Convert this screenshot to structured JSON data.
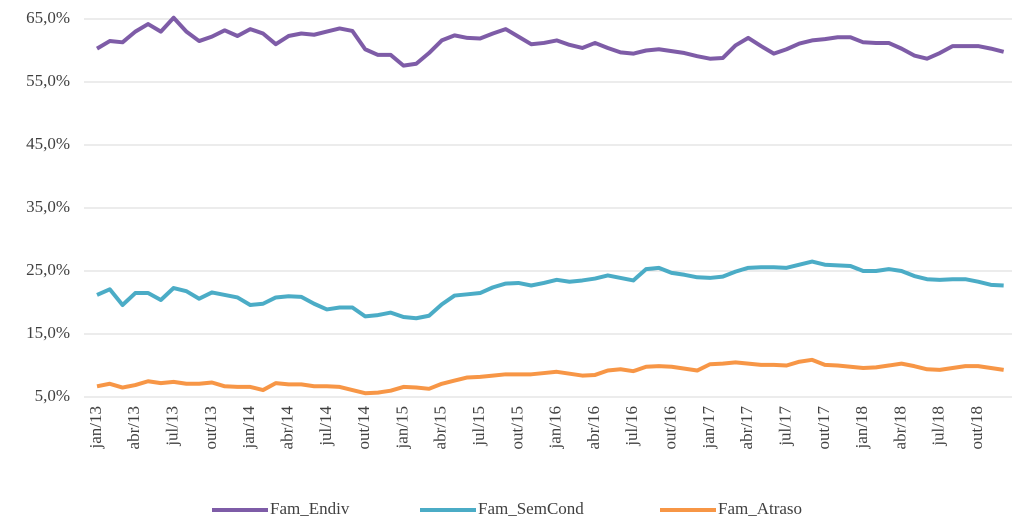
{
  "chart_data": {
    "type": "line",
    "categories": [
      "jan/13",
      null,
      null,
      "abr/13",
      null,
      null,
      "jul/13",
      null,
      null,
      "out/13",
      null,
      null,
      "jan/14",
      null,
      null,
      "abr/14",
      null,
      null,
      "jul/14",
      null,
      null,
      "out/14",
      null,
      null,
      "jan/15",
      null,
      null,
      "abr/15",
      null,
      null,
      "jul/15",
      null,
      null,
      "out/15",
      null,
      null,
      "jan/16",
      null,
      null,
      "abr/16",
      null,
      null,
      "jul/16",
      null,
      null,
      "out/16",
      null,
      null,
      "jan/17",
      null,
      null,
      "abr/17",
      null,
      null,
      "jul/17",
      null,
      null,
      "out/17",
      null,
      null,
      "jan/18",
      null,
      null,
      "abr/18",
      null,
      null,
      "jul/18",
      null,
      null,
      "out/18",
      null,
      null
    ],
    "series": [
      {
        "name": "Fam_Endiv",
        "color": "#7e5ca7",
        "values": [
          60.3,
          61.5,
          61.3,
          63,
          64.2,
          63,
          65.2,
          63,
          61.5,
          62.2,
          63.2,
          62.3,
          63.4,
          62.7,
          61,
          62.3,
          62.7,
          62.5,
          63,
          63.5,
          63.1,
          60.2,
          59.3,
          59.3,
          57.6,
          57.9,
          59.6,
          61.6,
          62.4,
          62,
          61.9,
          62.7,
          63.4,
          62.2,
          61,
          61.2,
          61.6,
          60.9,
          60.4,
          61.2,
          60.4,
          59.7,
          59.5,
          60,
          60.2,
          59.9,
          59.6,
          59.1,
          58.7,
          58.8,
          60.8,
          62,
          60.7,
          59.5,
          60.2,
          61.1,
          61.6,
          61.8,
          62.1,
          62.1,
          61.3,
          61.2,
          61.2,
          60.3,
          59.2,
          58.7,
          59.6,
          60.7,
          60.7,
          60.7,
          60.3,
          59.8
        ]
      },
      {
        "name": "Fam_SemCond",
        "color": "#4bacc6",
        "values": [
          21.2,
          22.1,
          19.6,
          21.5,
          21.5,
          20.4,
          22.3,
          21.8,
          20.6,
          21.6,
          21.2,
          20.8,
          19.6,
          19.8,
          20.8,
          21,
          20.9,
          19.8,
          18.9,
          19.2,
          19.2,
          17.8,
          18,
          18.4,
          17.7,
          17.5,
          17.9,
          19.7,
          21.1,
          21.3,
          21.5,
          22.4,
          23,
          23.1,
          22.7,
          23.1,
          23.6,
          23.3,
          23.5,
          23.8,
          24.3,
          23.9,
          23.5,
          25.3,
          25.5,
          24.7,
          24.4,
          24,
          23.9,
          24.1,
          24.9,
          25.5,
          25.6,
          25.6,
          25.5,
          26,
          26.5,
          26,
          25.9,
          25.8,
          25,
          25,
          25.3,
          25,
          24.2,
          23.7,
          23.6,
          23.7,
          23.7,
          23.3,
          22.8,
          22.7
        ]
      },
      {
        "name": "Fam_Atraso",
        "color": "#f79646",
        "values": [
          6.7,
          7.1,
          6.5,
          6.9,
          7.5,
          7.2,
          7.4,
          7.1,
          7.1,
          7.3,
          6.7,
          6.6,
          6.6,
          6.1,
          7.2,
          7,
          7,
          6.7,
          6.7,
          6.6,
          6.1,
          5.6,
          5.7,
          6,
          6.6,
          6.5,
          6.3,
          7.1,
          7.6,
          8.1,
          8.2,
          8.4,
          8.6,
          8.6,
          8.6,
          8.8,
          9,
          8.7,
          8.4,
          8.5,
          9.2,
          9.4,
          9.1,
          9.8,
          9.9,
          9.8,
          9.5,
          9.2,
          10.2,
          10.3,
          10.5,
          10.3,
          10.1,
          10.1,
          10,
          10.6,
          10.9,
          10.1,
          10,
          9.8,
          9.6,
          9.7,
          10,
          10.3,
          9.9,
          9.4,
          9.3,
          9.6,
          9.9,
          9.9,
          9.6,
          9.3
        ]
      }
    ],
    "ylim": [
      5,
      65
    ],
    "yticks": [
      {
        "value": 5,
        "label": "5,0%"
      },
      {
        "value": 15,
        "label": "15,0%"
      },
      {
        "value": 25,
        "label": "25,0%"
      },
      {
        "value": 35,
        "label": "35,0%"
      },
      {
        "value": 45,
        "label": "45,0%"
      },
      {
        "value": 55,
        "label": "55,0%"
      },
      {
        "value": 65,
        "label": "65,0%"
      }
    ],
    "grid": true,
    "legend": "bottom"
  }
}
